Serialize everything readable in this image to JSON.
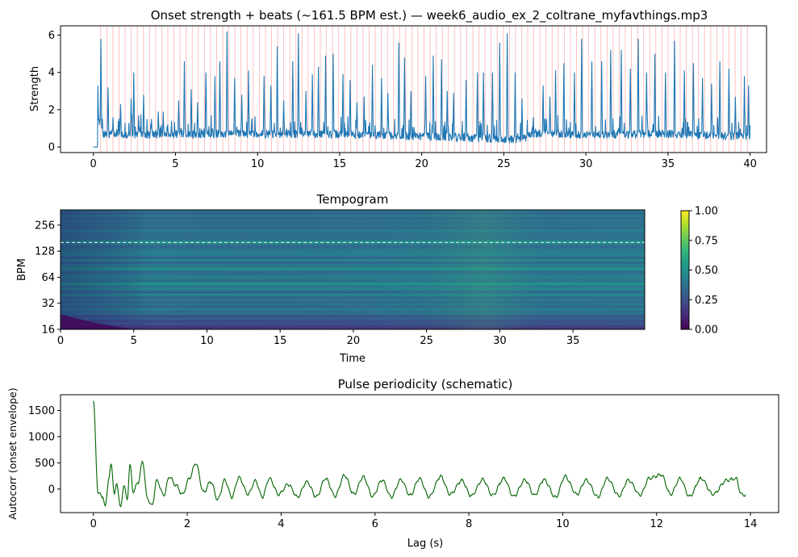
{
  "chart_data": [
    {
      "type": "line",
      "title": "Onset strength + beats (~161.5 BPM est.) — week6_audio_ex_2_coltrane_myfavthings.mp3",
      "xlabel": "",
      "ylabel": "Strength",
      "xlim": [
        -2,
        41
      ],
      "ylim": [
        -0.3,
        6.5
      ],
      "xticks": [
        0,
        5,
        10,
        15,
        20,
        25,
        30,
        35,
        40
      ],
      "yticks": [
        0,
        2,
        4,
        6
      ],
      "line_color": "#1f77b4",
      "beat_color": "#ff9999",
      "beat_interval_s": 0.3715,
      "beat_start_s": 0.45,
      "beat_end_s": 40.0,
      "x_end_s": 40.0,
      "peaks": [
        [
          0.27,
          3.3
        ],
        [
          0.45,
          5.8
        ],
        [
          0.9,
          3.2
        ],
        [
          1.2,
          1.6
        ],
        [
          1.65,
          2.3
        ],
        [
          2.3,
          2.6
        ],
        [
          2.45,
          4.0
        ],
        [
          2.75,
          1.7
        ],
        [
          3.05,
          2.8
        ],
        [
          3.55,
          1.5
        ],
        [
          3.95,
          1.9
        ],
        [
          4.25,
          1.9
        ],
        [
          4.75,
          1.4
        ],
        [
          5.2,
          2.5
        ],
        [
          5.55,
          4.6
        ],
        [
          5.95,
          3.1
        ],
        [
          6.35,
          2.4
        ],
        [
          6.85,
          4.0
        ],
        [
          7.4,
          3.8
        ],
        [
          7.7,
          4.6
        ],
        [
          8.15,
          6.2
        ],
        [
          8.6,
          3.7
        ],
        [
          9.05,
          2.8
        ],
        [
          9.45,
          4.1
        ],
        [
          10.4,
          3.8
        ],
        [
          10.8,
          3.3
        ],
        [
          11.2,
          5.4
        ],
        [
          11.6,
          2.5
        ],
        [
          12.15,
          4.6
        ],
        [
          12.5,
          6.1
        ],
        [
          12.95,
          3.0
        ],
        [
          13.35,
          3.9
        ],
        [
          13.7,
          4.3
        ],
        [
          14.15,
          4.9
        ],
        [
          14.6,
          5.0
        ],
        [
          15.2,
          3.9
        ],
        [
          15.65,
          3.6
        ],
        [
          16.05,
          2.4
        ],
        [
          16.5,
          2.7
        ],
        [
          17.0,
          4.4
        ],
        [
          17.55,
          3.7
        ],
        [
          17.95,
          2.9
        ],
        [
          18.6,
          5.6
        ],
        [
          18.95,
          4.8
        ],
        [
          19.35,
          3.0
        ],
        [
          20.25,
          3.8
        ],
        [
          20.7,
          4.9
        ],
        [
          21.2,
          4.7
        ],
        [
          21.55,
          3.0
        ],
        [
          21.95,
          2.9
        ],
        [
          22.7,
          3.6
        ],
        [
          23.4,
          4.0
        ],
        [
          23.75,
          4.0
        ],
        [
          24.3,
          4.0
        ],
        [
          24.75,
          5.6
        ],
        [
          25.2,
          6.1
        ],
        [
          25.7,
          4.0
        ],
        [
          26.1,
          2.6
        ],
        [
          26.8,
          1.6
        ],
        [
          27.4,
          3.3
        ],
        [
          27.8,
          2.7
        ],
        [
          28.15,
          4.1
        ],
        [
          28.65,
          4.5
        ],
        [
          29.3,
          4.0
        ],
        [
          29.75,
          5.8
        ],
        [
          30.35,
          4.6
        ],
        [
          30.95,
          4.6
        ],
        [
          31.5,
          5.2
        ],
        [
          32.15,
          5.2
        ],
        [
          32.7,
          4.2
        ],
        [
          33.2,
          5.8
        ],
        [
          33.7,
          4.0
        ],
        [
          34.2,
          5.0
        ],
        [
          34.85,
          4.0
        ],
        [
          35.4,
          5.7
        ],
        [
          36.0,
          4.1
        ],
        [
          36.55,
          4.5
        ],
        [
          37.1,
          3.7
        ],
        [
          37.65,
          3.4
        ],
        [
          38.15,
          4.6
        ],
        [
          38.7,
          4.2
        ],
        [
          39.1,
          2.7
        ],
        [
          39.65,
          3.8
        ],
        [
          39.9,
          3.3
        ]
      ],
      "baseline": [
        [
          0,
          0.0
        ],
        [
          0.3,
          1.6
        ],
        [
          0.6,
          0.7
        ],
        [
          3,
          0.65
        ],
        [
          5,
          0.7
        ],
        [
          9,
          0.7
        ],
        [
          14,
          0.7
        ],
        [
          19,
          0.6
        ],
        [
          26,
          0.4
        ],
        [
          27,
          0.75
        ],
        [
          30,
          0.65
        ],
        [
          35,
          0.7
        ],
        [
          40,
          0.55
        ]
      ]
    },
    {
      "type": "heatmap",
      "title": "Tempogram",
      "xlabel": "Time",
      "ylabel": "BPM",
      "xlim": [
        0,
        39.9
      ],
      "ylim": [
        16,
        384
      ],
      "yscale": "log2",
      "xticks": [
        0,
        5,
        10,
        15,
        20,
        25,
        30,
        35
      ],
      "yticks": [
        16,
        32,
        64,
        128,
        256
      ],
      "colormap": "viridis",
      "colorbar": {
        "vmin": 0.0,
        "vmax": 1.0,
        "ticks": [
          "0.00",
          "0.25",
          "0.50",
          "0.75",
          "1.00"
        ]
      },
      "estimated_tempo_line_bpm": 161.5,
      "colormap_stops": [
        "#440154",
        "#482878",
        "#3e4989",
        "#31688e",
        "#26828e",
        "#1f9e89",
        "#35b779",
        "#6ece58",
        "#b5de2b",
        "#fde725"
      ],
      "bright_bands_bpm": [
        [
          161.5,
          0.62
        ],
        [
          80,
          0.55
        ],
        [
          54,
          0.6
        ],
        [
          40,
          0.5
        ],
        [
          27,
          0.45
        ],
        [
          120,
          0.5
        ],
        [
          100,
          0.45
        ],
        [
          64,
          0.5
        ],
        [
          48,
          0.48
        ],
        [
          216,
          0.42
        ]
      ]
    },
    {
      "type": "line",
      "title": "Pulse periodicity (schematic)",
      "xlabel": "Lag (s)",
      "ylabel": "Autocorr (onset envelope)",
      "xlim": [
        -0.7,
        14.6
      ],
      "ylim": [
        -450,
        1800
      ],
      "xticks": [
        0,
        2,
        4,
        6,
        8,
        10,
        12,
        14
      ],
      "yticks": [
        0,
        500,
        1000,
        1500
      ],
      "line_color": "#006400",
      "x_end_s": 13.9,
      "start_value": 1680,
      "peaks": [
        [
          0.1,
          -80
        ],
        [
          0.2,
          -140
        ],
        [
          0.25,
          -340
        ],
        [
          0.33,
          200
        ],
        [
          0.38,
          470
        ],
        [
          0.45,
          -100
        ],
        [
          0.5,
          100
        ],
        [
          0.58,
          -360
        ],
        [
          0.65,
          80
        ],
        [
          0.72,
          -200
        ],
        [
          0.78,
          460
        ],
        [
          0.85,
          -50
        ],
        [
          0.95,
          120
        ],
        [
          1.05,
          520
        ],
        [
          1.15,
          -180
        ],
        [
          1.25,
          -320
        ],
        [
          1.35,
          160
        ],
        [
          1.5,
          -120
        ],
        [
          1.62,
          240
        ],
        [
          1.75,
          80
        ],
        [
          1.9,
          -100
        ],
        [
          2.05,
          210
        ],
        [
          2.18,
          500
        ],
        [
          2.35,
          -60
        ],
        [
          2.5,
          140
        ],
        [
          2.65,
          -200
        ],
        [
          2.8,
          170
        ],
        [
          2.95,
          -150
        ],
        [
          3.1,
          220
        ],
        [
          3.3,
          -100
        ],
        [
          3.45,
          160
        ],
        [
          3.6,
          -150
        ],
        [
          3.75,
          200
        ],
        [
          3.95,
          -100
        ],
        [
          4.15,
          90
        ],
        [
          4.35,
          -150
        ],
        [
          4.55,
          140
        ],
        [
          4.75,
          -150
        ],
        [
          4.95,
          200
        ],
        [
          5.15,
          -130
        ],
        [
          5.35,
          260
        ],
        [
          5.55,
          -100
        ],
        [
          5.75,
          230
        ],
        [
          5.95,
          -140
        ],
        [
          6.15,
          170
        ],
        [
          6.35,
          -150
        ],
        [
          6.55,
          180
        ],
        [
          6.75,
          -120
        ],
        [
          6.95,
          200
        ],
        [
          7.15,
          -150
        ],
        [
          7.4,
          240
        ],
        [
          7.6,
          -100
        ],
        [
          7.85,
          160
        ],
        [
          8.05,
          -130
        ],
        [
          8.3,
          180
        ],
        [
          8.5,
          -120
        ],
        [
          8.75,
          200
        ],
        [
          8.95,
          -140
        ],
        [
          9.2,
          170
        ],
        [
          9.4,
          -120
        ],
        [
          9.6,
          180
        ],
        [
          9.85,
          -160
        ],
        [
          10.05,
          240
        ],
        [
          10.3,
          -100
        ],
        [
          10.5,
          170
        ],
        [
          10.75,
          -150
        ],
        [
          10.95,
          200
        ],
        [
          11.2,
          -130
        ],
        [
          11.4,
          170
        ],
        [
          11.65,
          -110
        ],
        [
          11.85,
          210
        ],
        [
          12.1,
          270
        ],
        [
          12.3,
          -100
        ],
        [
          12.5,
          200
        ],
        [
          12.7,
          -140
        ],
        [
          12.95,
          200
        ],
        [
          13.2,
          -100
        ],
        [
          13.5,
          170
        ],
        [
          13.7,
          200
        ],
        [
          13.8,
          -100
        ],
        [
          13.9,
          -120
        ]
      ]
    }
  ]
}
